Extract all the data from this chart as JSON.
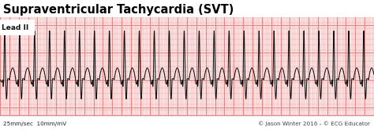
{
  "title": "Supraventricular Tachycardia (SVT)",
  "lead_label": "Lead II",
  "bottom_left": "25mm/sec  10mm/mV",
  "bottom_right": "© Jason Winter 2016 - © ECG Educator",
  "title_bg": "#ffffff",
  "ecg_bg": "#fce8e8",
  "footer_bg": "#f5c5c5",
  "grid_minor_color": "#f0aaaa",
  "grid_major_color": "#e08888",
  "line_color": "#111111",
  "title_color": "#000000",
  "figsize": [
    4.74,
    1.67
  ],
  "dpi": 100,
  "ecg_duration": 8.0,
  "rr_interval": 0.32,
  "fs": 1000
}
